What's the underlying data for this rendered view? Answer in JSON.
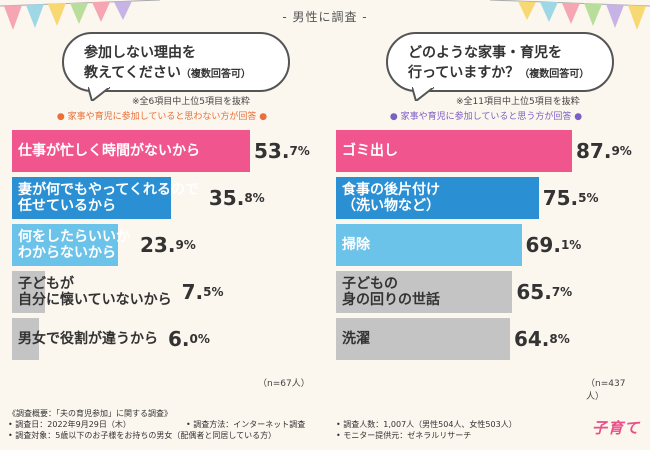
{
  "header": {
    "title": "- 男性に調査 -"
  },
  "colors": {
    "pink": "#f0558e",
    "blue": "#2b8fd3",
    "lightblue": "#6cc3ea",
    "gray": "#c4c4c4",
    "orange": "#e8703a",
    "purple": "#7b5fc4",
    "bg": "#fbf6ee"
  },
  "chart_data": [
    {
      "type": "bar",
      "question_line1": "参加しない理由を",
      "question_line2": "教えてください",
      "question_note": "（複数回答可）",
      "note": "※全6項目中上位5項目を抜粋",
      "condition": "● 家事や育児に参加していると思わない方が回答 ●",
      "categories": [
        "仕事が忙しく時間がないから",
        "妻が何でもやってくれるので任せているから",
        "何をしたらいいかわからないから",
        "子どもが自分に懐いていないから",
        "男女で役割が違うから"
      ],
      "category_lines": [
        [
          "仕事が忙しく時間がないから"
        ],
        [
          "妻が何でもやってくれるので",
          "任せているから"
        ],
        [
          "何をしたらいいか",
          "わからないから"
        ],
        [
          "子どもが",
          "自分に懐いていないから"
        ],
        [
          "男女で役割が違うから"
        ]
      ],
      "values": [
        53.7,
        35.8,
        23.9,
        7.5,
        6.0
      ],
      "value_int": [
        "53.",
        "35.",
        "23.",
        "7.",
        "6."
      ],
      "value_dec": [
        "7%",
        "8%",
        "9%",
        "5%",
        "0%"
      ],
      "xlim": [
        0,
        53.7
      ],
      "n": "（n=67人）"
    },
    {
      "type": "bar",
      "question_line1": "どのような家事・育児を",
      "question_line2": "行っていますか？",
      "question_note": "（複数回答可）",
      "note": "※全11項目中上位5項目を抜粋",
      "condition": "● 家事や育児に参加していると思う方が回答 ●",
      "categories": [
        "ゴミ出し",
        "食事の後片付け（洗い物など）",
        "掃除",
        "子どもの身の回りの世話",
        "洗濯"
      ],
      "category_lines": [
        [
          "ゴミ出し"
        ],
        [
          "食事の後片付け",
          "（洗い物など）"
        ],
        [
          "掃除"
        ],
        [
          "子どもの",
          "身の回りの世話"
        ],
        [
          "洗濯"
        ]
      ],
      "values": [
        87.9,
        75.5,
        69.1,
        65.7,
        64.8
      ],
      "value_int": [
        "87.",
        "75.",
        "69.",
        "65.",
        "64."
      ],
      "value_dec": [
        "9%",
        "5%",
        "1%",
        "7%",
        "8%"
      ],
      "xlim": [
        0,
        87.9
      ],
      "n": "（n=437人）"
    }
  ],
  "footer": {
    "title": "《調査概要：「夫の育児参加」に関する調査》",
    "date": "• 調査日：2022年9月29日（木）",
    "method": "• 調査方法：インターネット調査",
    "count": "• 調査人数：1,007人（男性504人、女性503人）",
    "target": "• 調査対象：5歳以下のお子様をお持ちの男女（配偶者と同居している方）",
    "provider": "• モニター提供元：ゼネラルリサーチ"
  },
  "logo": "子育て"
}
